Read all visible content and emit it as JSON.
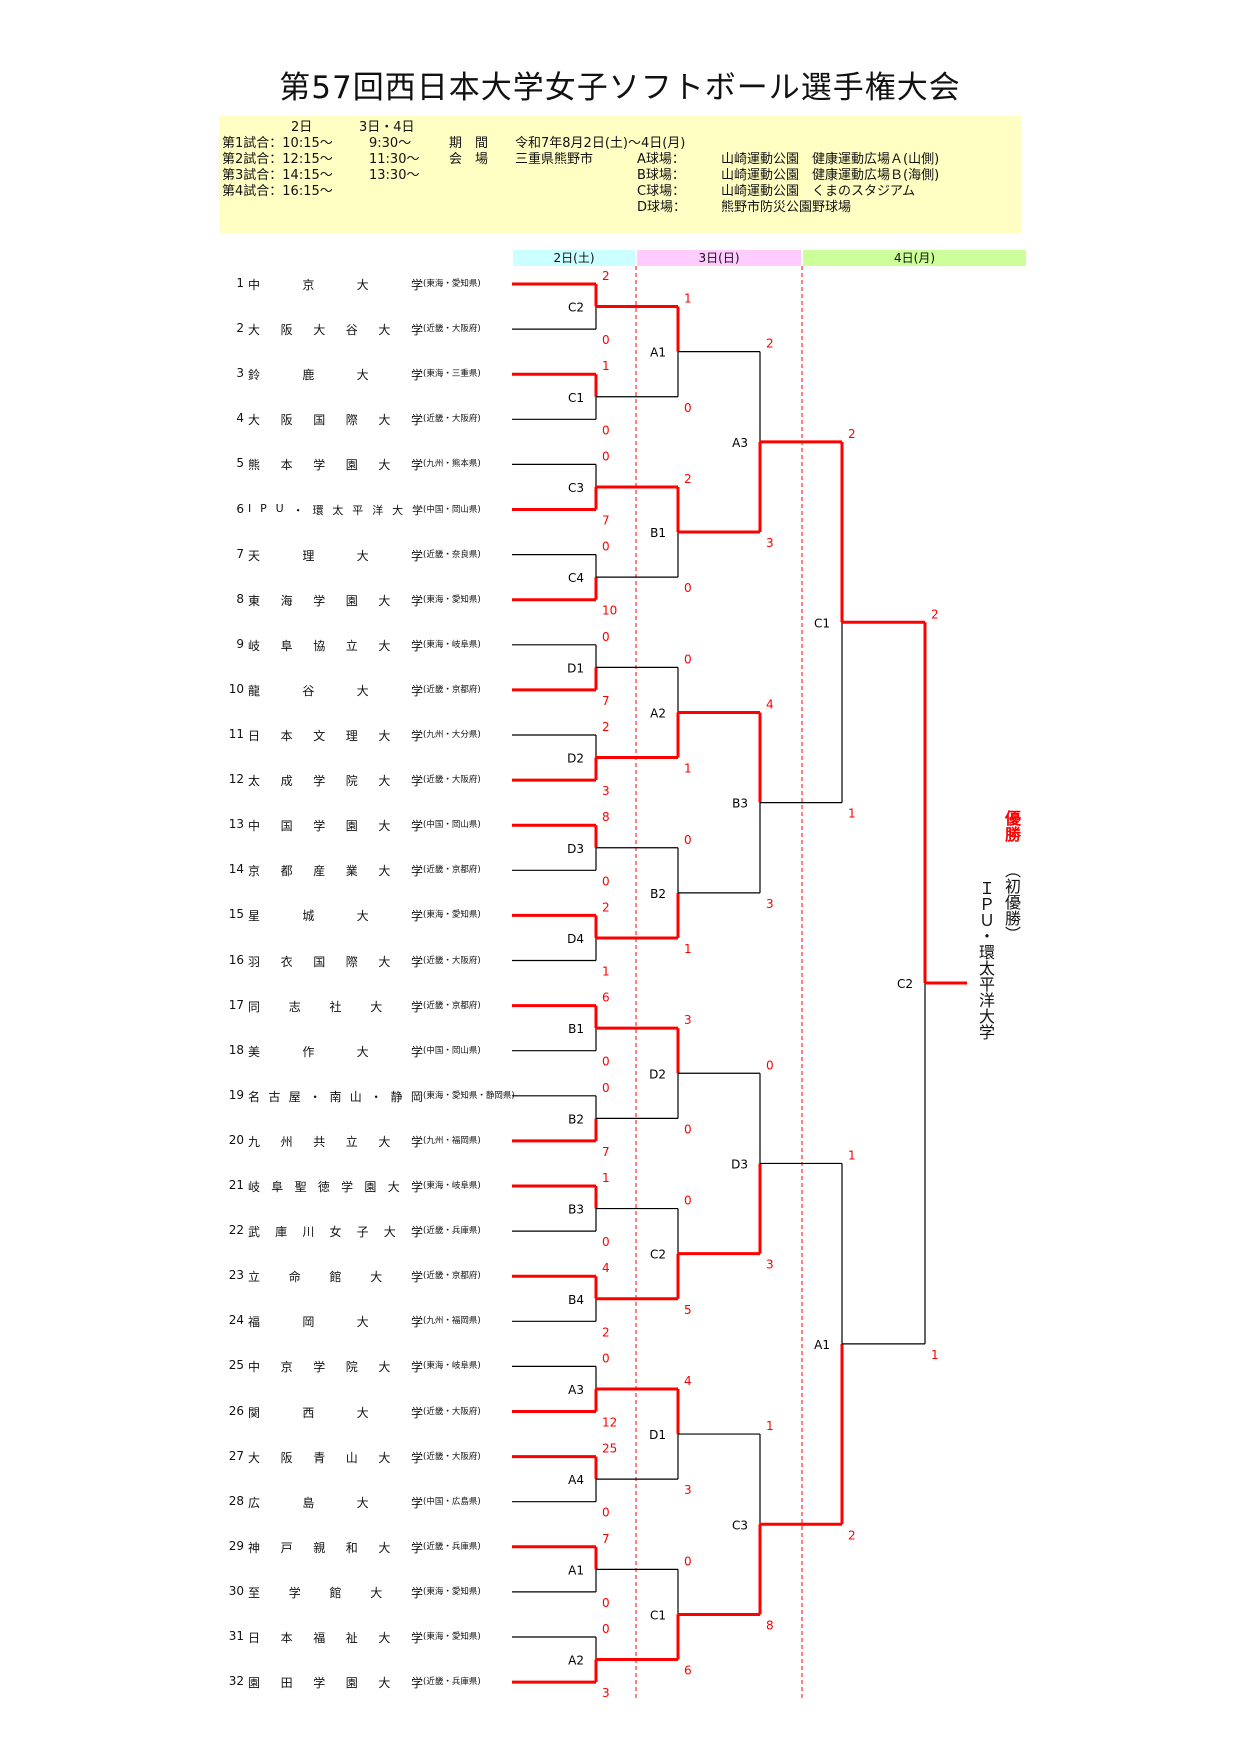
{
  "title": "第57回西日本大学女子ソフトボール選手権大会",
  "info": {
    "col_day2": "2日",
    "col_day34": "3日・4日",
    "match_times": [
      {
        "label": "第1試合：10:15～",
        "t34": "9:30～"
      },
      {
        "label": "第2試合：12:15～",
        "t34": "11:30～"
      },
      {
        "label": "第3試合：14:15～",
        "t34": "13:30～"
      },
      {
        "label": "第4試合：16:15～",
        "t34": ""
      }
    ],
    "period_label": "期　間",
    "period_value": "令和7年8月2日(土)～4日(月)",
    "venue_label": "会　場",
    "venue_value": "三重県熊野市",
    "fields": [
      {
        "name": "A球場：",
        "place": "山崎運動公園　健康運動広場Ａ(山側)"
      },
      {
        "name": "B球場：",
        "place": "山崎運動公園　健康運動広場Ｂ(海側)"
      },
      {
        "name": "C球場：",
        "place": "山崎運動公園　くまのスタジアム"
      },
      {
        "name": "D球場：",
        "place": "熊野市防災公園野球場"
      }
    ]
  },
  "days": [
    {
      "label": "2日(土)",
      "color": "#ccffff"
    },
    {
      "label": "3日(日)",
      "color": "#ffccff"
    },
    {
      "label": "4日(月)",
      "color": "#ccff99"
    }
  ],
  "teams": [
    {
      "no": "1",
      "name": "中京大学",
      "region": "(東海・愛知県)"
    },
    {
      "no": "2",
      "name": "大阪大谷大学",
      "region": "(近畿・大阪府)"
    },
    {
      "no": "3",
      "name": "鈴鹿大学",
      "region": "(東海・三重県)"
    },
    {
      "no": "4",
      "name": "大阪国際大学",
      "region": "(近畿・大阪府)"
    },
    {
      "no": "5",
      "name": "熊本学園大学",
      "region": "(九州・熊本県)"
    },
    {
      "no": "6",
      "name": "IPU・環太平洋大学",
      "region": "(中国・岡山県)"
    },
    {
      "no": "7",
      "name": "天理大学",
      "region": "(近畿・奈良県)"
    },
    {
      "no": "8",
      "name": "東海学園大学",
      "region": "(東海・愛知県)"
    },
    {
      "no": "9",
      "name": "岐阜協立大学",
      "region": "(東海・岐阜県)"
    },
    {
      "no": "10",
      "name": "龍谷大学",
      "region": "(近畿・京都府)"
    },
    {
      "no": "11",
      "name": "日本文理大学",
      "region": "(九州・大分県)"
    },
    {
      "no": "12",
      "name": "太成学院大学",
      "region": "(近畿・大阪府)"
    },
    {
      "no": "13",
      "name": "中国学園大学",
      "region": "(中国・岡山県)"
    },
    {
      "no": "14",
      "name": "京都産業大学",
      "region": "(近畿・京都府)"
    },
    {
      "no": "15",
      "name": "星城大学",
      "region": "(東海・愛知県)"
    },
    {
      "no": "16",
      "name": "羽衣国際大学",
      "region": "(近畿・大阪府)"
    },
    {
      "no": "17",
      "name": "同志社大学",
      "region": "(近畿・京都府)"
    },
    {
      "no": "18",
      "name": "美作大学",
      "region": "(中国・岡山県)"
    },
    {
      "no": "19",
      "name": "名古屋・南山・静岡",
      "region": "(東海・愛知県・静岡県)"
    },
    {
      "no": "20",
      "name": "九州共立大学",
      "region": "(九州・福岡県)"
    },
    {
      "no": "21",
      "name": "岐阜聖徳学園大学",
      "region": "(東海・岐阜県)"
    },
    {
      "no": "22",
      "name": "武庫川女子大学",
      "region": "(近畿・兵庫県)"
    },
    {
      "no": "23",
      "name": "立命館大学",
      "region": "(近畿・京都府)"
    },
    {
      "no": "24",
      "name": "福岡大学",
      "region": "(九州・福岡県)"
    },
    {
      "no": "25",
      "name": "中京学院大学",
      "region": "(東海・岐阜県)"
    },
    {
      "no": "26",
      "name": "関西大学",
      "region": "(近畿・大阪府)"
    },
    {
      "no": "27",
      "name": "大阪青山大学",
      "region": "(近畿・大阪府)"
    },
    {
      "no": "28",
      "name": "広島大学",
      "region": "(中国・広島県)"
    },
    {
      "no": "29",
      "name": "神戸親和大学",
      "region": "(近畿・兵庫県)"
    },
    {
      "no": "30",
      "name": "至学館大学",
      "region": "(東海・愛知県)"
    },
    {
      "no": "31",
      "name": "日本福祉大学",
      "region": "(東海・愛知県)"
    },
    {
      "no": "32",
      "name": "園田学園大学",
      "region": "(近畿・兵庫県)"
    }
  ],
  "rounds": [
    [
      {
        "code": "C2",
        "scores": [
          "2",
          "0"
        ],
        "winner": 0
      },
      {
        "code": "C1",
        "scores": [
          "1",
          "0"
        ],
        "winner": 0
      },
      {
        "code": "C3",
        "scores": [
          "0",
          "7"
        ],
        "winner": 1
      },
      {
        "code": "C4",
        "scores": [
          "0",
          "10"
        ],
        "winner": 1
      },
      {
        "code": "D1",
        "scores": [
          "0",
          "7"
        ],
        "winner": 1
      },
      {
        "code": "D2",
        "scores": [
          "2",
          "3"
        ],
        "winner": 1
      },
      {
        "code": "D3",
        "scores": [
          "8",
          "0"
        ],
        "winner": 0
      },
      {
        "code": "D4",
        "scores": [
          "2",
          "1"
        ],
        "winner": 0
      },
      {
        "code": "B1",
        "scores": [
          "6",
          "0"
        ],
        "winner": 0
      },
      {
        "code": "B2",
        "scores": [
          "0",
          "7"
        ],
        "winner": 1
      },
      {
        "code": "B3",
        "scores": [
          "1",
          "0"
        ],
        "winner": 0
      },
      {
        "code": "B4",
        "scores": [
          "4",
          "2"
        ],
        "winner": 0
      },
      {
        "code": "A3",
        "scores": [
          "0",
          "12"
        ],
        "winner": 1
      },
      {
        "code": "A4",
        "scores": [
          "25",
          "0"
        ],
        "winner": 0
      },
      {
        "code": "A1",
        "scores": [
          "7",
          "0"
        ],
        "winner": 0
      },
      {
        "code": "A2",
        "scores": [
          "0",
          "3"
        ],
        "winner": 1
      }
    ],
    [
      {
        "code": "A1",
        "scores": [
          "1",
          "0"
        ],
        "winner": 0
      },
      {
        "code": "B1",
        "scores": [
          "2",
          "0"
        ],
        "winner": 0
      },
      {
        "code": "A2",
        "scores": [
          "0",
          "1"
        ],
        "winner": 1
      },
      {
        "code": "B2",
        "scores": [
          "0",
          "1"
        ],
        "winner": 1
      },
      {
        "code": "D2",
        "scores": [
          "3",
          "0"
        ],
        "winner": 0
      },
      {
        "code": "C2",
        "scores": [
          "0",
          "5"
        ],
        "winner": 1
      },
      {
        "code": "D1",
        "scores": [
          "4",
          "3"
        ],
        "winner": 0
      },
      {
        "code": "C1",
        "scores": [
          "0",
          "6"
        ],
        "winner": 1
      }
    ],
    [
      {
        "code": "A3",
        "scores": [
          "2",
          "3"
        ],
        "winner": 1
      },
      {
        "code": "B3",
        "scores": [
          "4",
          "3"
        ],
        "winner": 0
      },
      {
        "code": "D3",
        "scores": [
          "0",
          "3"
        ],
        "winner": 1
      },
      {
        "code": "C3",
        "scores": [
          "1",
          "8"
        ],
        "winner": 1
      }
    ],
    [
      {
        "code": "C1",
        "scores": [
          "2",
          "1"
        ],
        "winner": 0
      },
      {
        "code": "A1",
        "scores": [
          "1",
          "2"
        ],
        "winner": 1
      }
    ],
    [
      {
        "code": "C2",
        "scores": [
          "2",
          "1"
        ],
        "winner": 0
      }
    ]
  ],
  "champion": {
    "label": "優勝",
    "note": "（初優勝）",
    "team": "ＩＰＵ・環太平洋大学",
    "color": "#ff0000"
  },
  "colors": {
    "win_line": "#ff0000",
    "line": "#000000",
    "score": "#ff0000",
    "divider": "#ff0000"
  }
}
